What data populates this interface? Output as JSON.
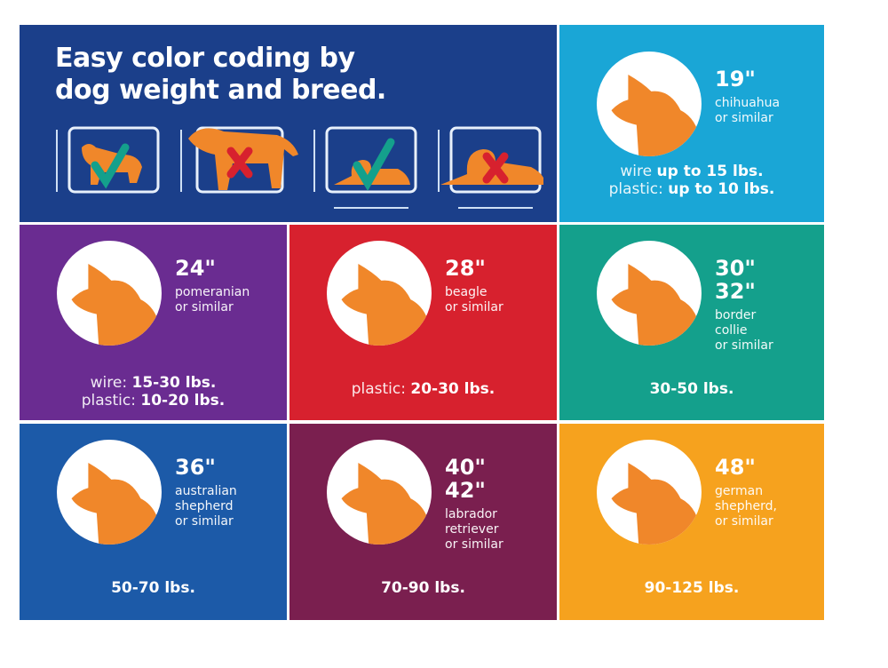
{
  "header": {
    "title_line1": "Easy color coding by",
    "title_line2": "dog weight and breed.",
    "crate_icons": [
      "dog-fits-check",
      "dog-too-big-x",
      "lying-dog-fits-check",
      "lying-dog-too-long-x"
    ]
  },
  "colors": {
    "header": "#1b3f8a",
    "dog": "#f0872a",
    "check": "#14a08c",
    "x": "#d7212e"
  },
  "cells": [
    {
      "bg": "#1aa6d6",
      "sizes": [
        "19\""
      ],
      "breed": [
        "chihuahua",
        "or similar"
      ],
      "weights": [
        {
          "label": "wire",
          "value": "up to 15 lbs."
        },
        {
          "label": "plastic:",
          "value": "up to 10 lbs."
        }
      ]
    },
    {
      "bg": "#6a2c91",
      "sizes": [
        "24\""
      ],
      "breed": [
        "pomeranian",
        "or similar"
      ],
      "weights": [
        {
          "label": "wire:",
          "value": "15-30 lbs."
        },
        {
          "label": "plastic:",
          "value": "10-20 lbs."
        }
      ]
    },
    {
      "bg": "#d7212e",
      "sizes": [
        "28\""
      ],
      "breed": [
        "beagle",
        "or similar"
      ],
      "weights": [
        {
          "label": "plastic:",
          "value": "20-30 lbs."
        }
      ]
    },
    {
      "bg": "#14a08c",
      "sizes": [
        "30\"",
        "32\""
      ],
      "breed": [
        "border",
        "collie",
        "or similar"
      ],
      "weights": [
        {
          "label": "",
          "value": "30-50 lbs."
        }
      ]
    },
    {
      "bg": "#1c5aa8",
      "sizes": [
        "36\""
      ],
      "breed": [
        "australian",
        "shepherd",
        "or similar"
      ],
      "weights": [
        {
          "label": "",
          "value": "50-70 lbs."
        }
      ]
    },
    {
      "bg": "#7a1f4f",
      "sizes": [
        "40\"",
        "42\""
      ],
      "breed": [
        "labrador",
        "retriever",
        "or similar"
      ],
      "weights": [
        {
          "label": "",
          "value": "70-90 lbs."
        }
      ]
    },
    {
      "bg": "#f6a21e",
      "sizes": [
        "48\""
      ],
      "breed": [
        "german",
        "shepherd,",
        "or similar"
      ],
      "weights": [
        {
          "label": "",
          "value": "90-125 lbs."
        }
      ]
    }
  ]
}
